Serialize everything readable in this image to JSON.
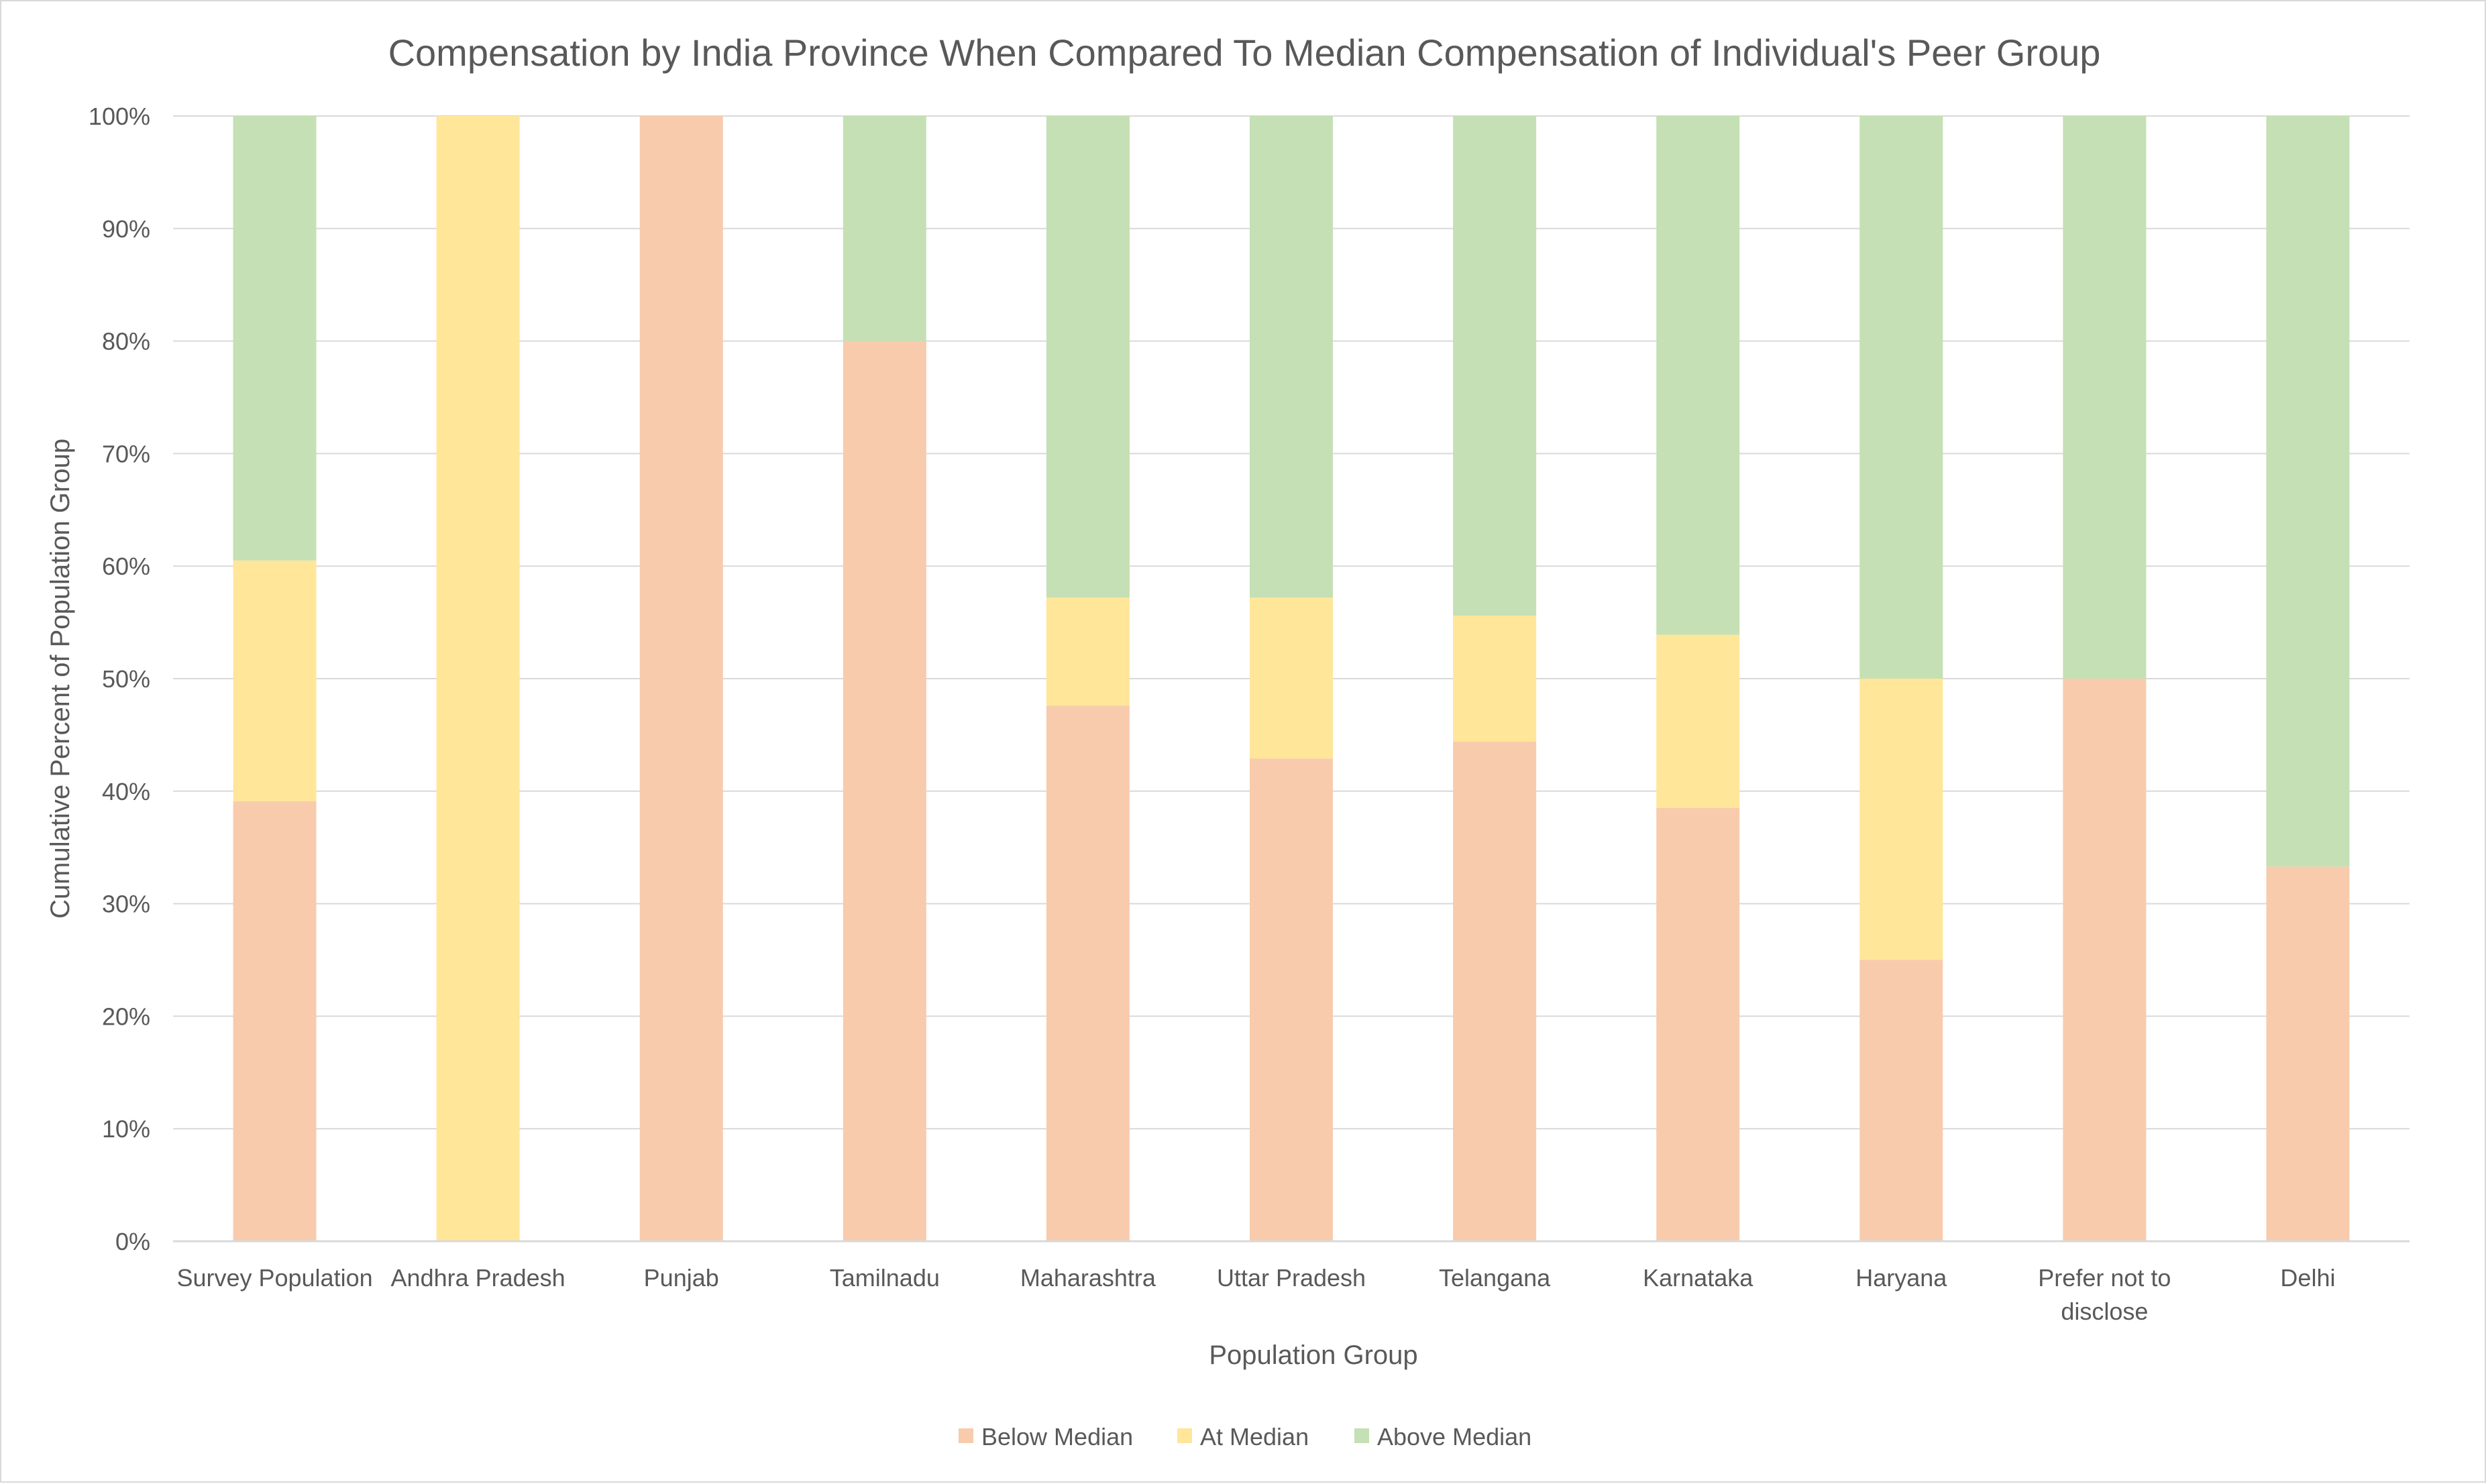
{
  "chart_data": {
    "type": "bar",
    "stacked": true,
    "title": "Compensation by India Province When Compared To Median Compensation of Individual's Peer Group",
    "xlabel": "Population Group",
    "ylabel": "Cumulative Percent of Population Group",
    "ylim": [
      0,
      100
    ],
    "ytick_step": 10,
    "y_tick_suffix": "%",
    "grid": true,
    "legend_position": "bottom",
    "categories": [
      "Survey Population",
      "Andhra Pradesh",
      "Punjab",
      "Tamilnadu",
      "Maharashtra",
      "Uttar Pradesh",
      "Telangana",
      "Karnataka",
      "Haryana",
      "Prefer not to disclose",
      "Delhi"
    ],
    "category_lines": [
      [
        "Survey Population"
      ],
      [
        "Andhra Pradesh"
      ],
      [
        "Punjab"
      ],
      [
        "Tamilnadu"
      ],
      [
        "Maharashtra"
      ],
      [
        "Uttar Pradesh"
      ],
      [
        "Telangana"
      ],
      [
        "Karnataka"
      ],
      [
        "Haryana"
      ],
      [
        "Prefer not to",
        "disclose"
      ],
      [
        "Delhi"
      ]
    ],
    "series": [
      {
        "name": "Below Median",
        "color": "#f8cbad",
        "values": [
          39.1,
          0,
          100,
          80,
          47.6,
          42.9,
          44.4,
          38.5,
          25,
          50,
          33.3
        ]
      },
      {
        "name": "At Median",
        "color": "#ffe699",
        "values": [
          21.4,
          100,
          0,
          0,
          9.6,
          14.3,
          11.2,
          15.4,
          25,
          0,
          0
        ]
      },
      {
        "name": "Above Median",
        "color": "#c5e0b4",
        "values": [
          39.5,
          0,
          0,
          20,
          42.8,
          42.8,
          44.4,
          46.1,
          50,
          50,
          66.7
        ]
      }
    ]
  }
}
